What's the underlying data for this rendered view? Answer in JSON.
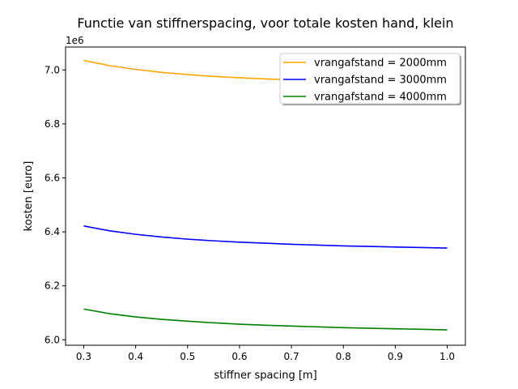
{
  "chart_data": {
    "type": "line",
    "title": "Functie van stiffnerspacing, voor totale kosten hand, klein",
    "xlabel": "stiffner spacing [m]",
    "ylabel": "kosten [euro]",
    "y_offset_label": "1e6",
    "xlim": [
      0.265,
      1.035
    ],
    "ylim": [
      5.98,
      7.085
    ],
    "x_ticks": [
      "0.3",
      "0.4",
      "0.5",
      "0.6",
      "0.7",
      "0.8",
      "0.9",
      "1.0"
    ],
    "y_ticks": [
      "6.0",
      "6.2",
      "6.4",
      "6.6",
      "6.8",
      "7.0"
    ],
    "grid": false,
    "legend_position": "top-right",
    "x": [
      0.3,
      0.35,
      0.4,
      0.45,
      0.5,
      0.55,
      0.6,
      0.65,
      0.7,
      0.75,
      0.8,
      0.85,
      0.9,
      0.95,
      1.0
    ],
    "series": [
      {
        "name": "vrangafstand = 2000mm",
        "color": "#ffa500",
        "values": [
          7.035,
          7.016,
          7.002,
          6.991,
          6.983,
          6.976,
          6.971,
          6.967,
          6.963,
          6.96,
          6.957,
          6.954,
          6.952,
          6.95,
          6.948
        ]
      },
      {
        "name": "vrangafstand = 3000mm",
        "color": "#0000ff",
        "values": [
          6.422,
          6.404,
          6.391,
          6.381,
          6.373,
          6.367,
          6.362,
          6.358,
          6.354,
          6.351,
          6.348,
          6.346,
          6.344,
          6.342,
          6.34
        ]
      },
      {
        "name": "vrangafstand = 4000mm",
        "color": "#008000",
        "values": [
          6.114,
          6.097,
          6.085,
          6.076,
          6.069,
          6.063,
          6.058,
          6.054,
          6.051,
          6.048,
          6.045,
          6.043,
          6.041,
          6.039,
          6.037
        ]
      }
    ]
  }
}
